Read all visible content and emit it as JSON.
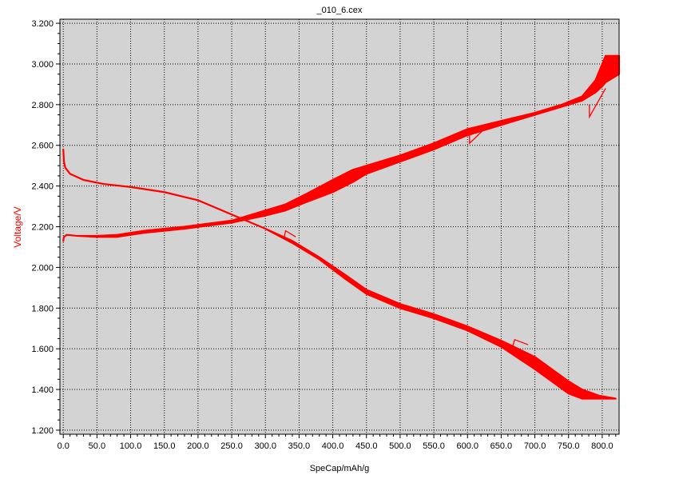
{
  "chart_data": {
    "type": "line",
    "title": "_010_6.cex",
    "xlabel": "SpeCap/mAh/g",
    "ylabel": "Voltage/V",
    "ylabel_color": "#ff0000",
    "plot_background": "#d3d3d3",
    "grid": true,
    "grid_style": "dotted",
    "xlim": [
      -5,
      825
    ],
    "ylim": [
      1.18,
      3.22
    ],
    "xticks": [
      "0.0",
      "50.0",
      "100.0",
      "150.0",
      "200.0",
      "250.0",
      "300.0",
      "350.0",
      "400.0",
      "450.0",
      "500.0",
      "550.0",
      "600.0",
      "650.0",
      "700.0",
      "750.0",
      "800.0"
    ],
    "xtick_values": [
      0,
      50,
      100,
      150,
      200,
      250,
      300,
      350,
      400,
      450,
      500,
      550,
      600,
      650,
      700,
      750,
      800
    ],
    "yticks": [
      "1.200",
      "1.400",
      "1.600",
      "1.800",
      "2.000",
      "2.200",
      "2.400",
      "2.600",
      "2.800",
      "3.000",
      "3.200"
    ],
    "ytick_values": [
      1.2,
      1.4,
      1.6,
      1.8,
      2.0,
      2.2,
      2.4,
      2.6,
      2.8,
      3.0,
      3.2
    ],
    "series": [
      {
        "color": "#ff0000",
        "band": [
          [
            0,
            2.58,
            2.58
          ],
          [
            1,
            2.52,
            2.52
          ],
          [
            3,
            2.49,
            2.49
          ],
          [
            10,
            2.46,
            2.46
          ],
          [
            30,
            2.43,
            2.43
          ],
          [
            60,
            2.41,
            2.41
          ],
          [
            100,
            2.395,
            2.395
          ],
          [
            150,
            2.37,
            2.37
          ],
          [
            200,
            2.33,
            2.33
          ],
          [
            250,
            2.26,
            2.26
          ],
          [
            300,
            2.19,
            2.19
          ],
          [
            340,
            2.12,
            2.13
          ],
          [
            380,
            2.04,
            2.05
          ],
          [
            420,
            1.94,
            1.96
          ],
          [
            450,
            1.87,
            1.89
          ],
          [
            500,
            1.8,
            1.82
          ],
          [
            550,
            1.75,
            1.77
          ],
          [
            600,
            1.69,
            1.71
          ],
          [
            650,
            1.61,
            1.64
          ],
          [
            700,
            1.5,
            1.56
          ],
          [
            750,
            1.38,
            1.44
          ],
          [
            770,
            1.355,
            1.4
          ],
          [
            795,
            1.355,
            1.37
          ],
          [
            820,
            1.355,
            1.355
          ]
        ],
        "spikes": [
          [
            [
              328,
              2.15
            ],
            [
              330,
              2.18
            ],
            [
              345,
              2.15
            ]
          ],
          [
            [
              666,
              1.6
            ],
            [
              670,
              1.645
            ],
            [
              690,
              1.62
            ]
          ]
        ]
      },
      {
        "color": "#ff0000",
        "band": [
          [
            0,
            2.13,
            2.13
          ],
          [
            1,
            2.15,
            2.15
          ],
          [
            5,
            2.16,
            2.16
          ],
          [
            20,
            2.155,
            2.155
          ],
          [
            50,
            2.15,
            2.155
          ],
          [
            80,
            2.15,
            2.16
          ],
          [
            120,
            2.17,
            2.18
          ],
          [
            180,
            2.19,
            2.2
          ],
          [
            250,
            2.22,
            2.23
          ],
          [
            300,
            2.255,
            2.28
          ],
          [
            330,
            2.28,
            2.31
          ],
          [
            360,
            2.32,
            2.36
          ],
          [
            400,
            2.37,
            2.43
          ],
          [
            430,
            2.42,
            2.48
          ],
          [
            450,
            2.46,
            2.5
          ],
          [
            500,
            2.52,
            2.55
          ],
          [
            550,
            2.58,
            2.61
          ],
          [
            600,
            2.65,
            2.68
          ],
          [
            650,
            2.7,
            2.72
          ],
          [
            700,
            2.75,
            2.76
          ],
          [
            740,
            2.79,
            2.8
          ],
          [
            770,
            2.82,
            2.84
          ],
          [
            790,
            2.86,
            2.92
          ],
          [
            800,
            2.89,
            3.0
          ],
          [
            805,
            2.91,
            3.04
          ],
          [
            825,
            2.95,
            3.04
          ]
        ],
        "spikes": [
          [
            [
              603,
              2.66
            ],
            [
              603,
              2.61
            ],
            [
              625,
              2.68
            ]
          ],
          [
            [
              781,
              2.8
            ],
            [
              781,
              2.74
            ],
            [
              805,
              2.88
            ]
          ]
        ]
      }
    ]
  }
}
